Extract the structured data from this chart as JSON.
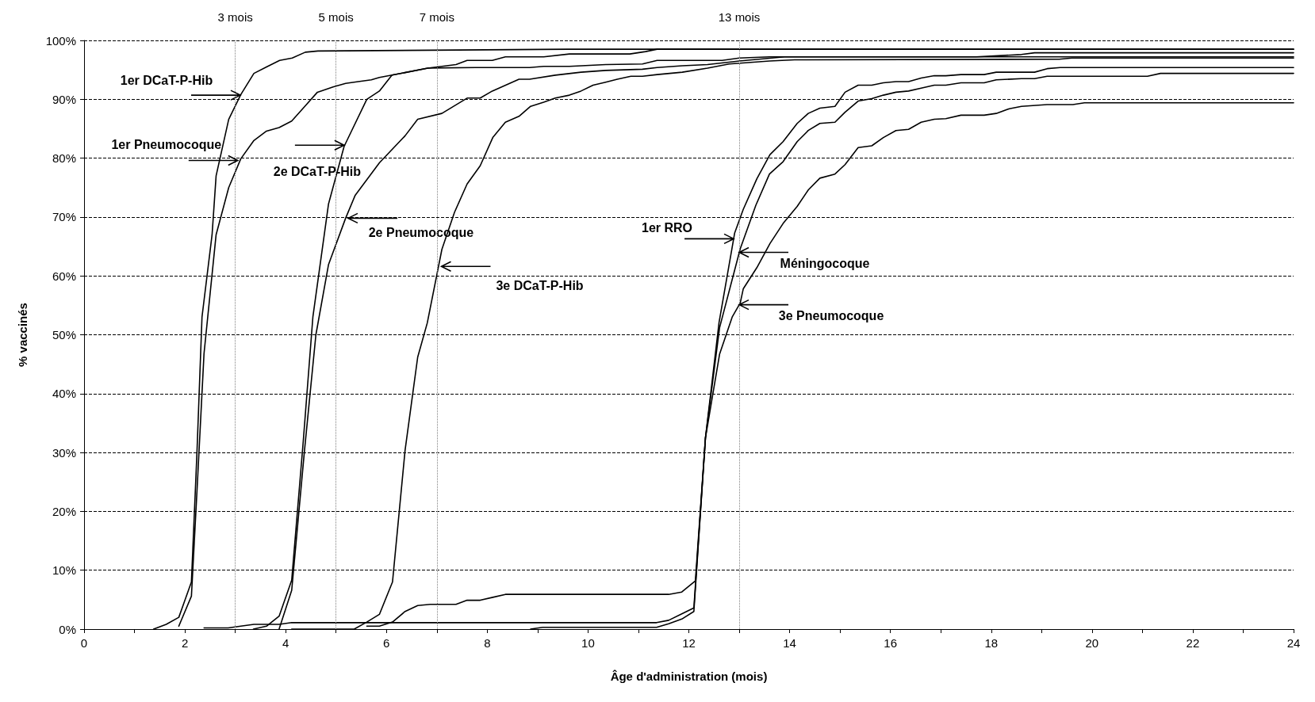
{
  "chart_data": {
    "type": "line",
    "xlabel": "Âge d'administration (mois)",
    "ylabel": "% vaccinés",
    "xlim": [
      0,
      24
    ],
    "ylim": [
      0,
      100
    ],
    "xticks": [
      0,
      {
        "value": 1,
        "label": null
      },
      2,
      {
        "value": 3,
        "label": null
      },
      4,
      {
        "value": 5,
        "label": null
      },
      6,
      {
        "value": 7,
        "label": null
      },
      8,
      {
        "value": 9,
        "label": null
      },
      10,
      {
        "value": 11,
        "label": null
      },
      12,
      {
        "value": 13,
        "label": null
      },
      14,
      {
        "value": 15,
        "label": null
      },
      16,
      {
        "value": 17,
        "label": null
      },
      18,
      {
        "value": 19,
        "label": null
      },
      20,
      {
        "value": 21,
        "label": null
      },
      22,
      {
        "value": 23,
        "label": null
      },
      24
    ],
    "yticks": [
      {
        "value": 0,
        "label": "0%"
      },
      {
        "value": 10,
        "label": "10%"
      },
      {
        "value": 20,
        "label": "20%"
      },
      {
        "value": 30,
        "label": "30%"
      },
      {
        "value": 40,
        "label": "40%"
      },
      {
        "value": 50,
        "label": "50%"
      },
      {
        "value": 60,
        "label": "60%"
      },
      {
        "value": 70,
        "label": "70%"
      },
      {
        "value": 80,
        "label": "80%"
      },
      {
        "value": 90,
        "label": "90%"
      },
      {
        "value": 100,
        "label": "100%"
      }
    ],
    "grid": "y",
    "marker": "none",
    "line_style": "solid",
    "series": [
      {
        "color": "#000000",
        "x": [
          1.38,
          1.63,
          1.88,
          2.13,
          2.24,
          2.34,
          2.54,
          2.62,
          2.87,
          3.11,
          3.37,
          3.62,
          3.88,
          4.13,
          4.39,
          4.64,
          9.6,
          24
        ],
        "values": [
          0,
          0.8,
          2,
          8,
          30,
          53,
          67,
          77,
          86.6,
          90.8,
          94.4,
          95.5,
          96.6,
          97,
          98,
          98.2,
          98.5,
          98.5
        ]
      },
      {
        "color": "#000000",
        "x": [
          1.88,
          2.13,
          2.25,
          2.38,
          2.62,
          2.87,
          3.11,
          3.37,
          3.62,
          3.87,
          4.12,
          4.38,
          4.63,
          4.94,
          5.19,
          5.44,
          5.7,
          5.86,
          6.11,
          6.82,
          7.77,
          8.84,
          9.12,
          9.63,
          10.35,
          11.08,
          11.37,
          12.66,
          13.0,
          13.6,
          17.7,
          18.6,
          18.86,
          24
        ],
        "values": [
          0.5,
          5.6,
          25,
          46.8,
          67,
          75,
          79.9,
          83,
          84.6,
          85.2,
          86.3,
          88.8,
          91.2,
          92.1,
          92.7,
          93,
          93.3,
          93.7,
          94.1,
          95.3,
          95.4,
          95.4,
          95.6,
          95.6,
          95.9,
          96,
          96.6,
          96.6,
          97,
          97.2,
          97.2,
          97.6,
          97.9,
          97.9
        ]
      },
      {
        "color": "#000000",
        "x": [
          3.36,
          3.62,
          3.87,
          4.12,
          4.35,
          4.54,
          4.85,
          5.16,
          5.61,
          5.86,
          6.11,
          6.82,
          7.38,
          7.6,
          8.1,
          8.36,
          9.12,
          9.63,
          10.83,
          11.14,
          11.37,
          24
        ],
        "values": [
          0,
          0.5,
          2.2,
          8.3,
          32,
          53,
          72.2,
          82,
          90,
          91.4,
          94.1,
          95.3,
          95.9,
          96.6,
          96.6,
          97.2,
          97.2,
          97.7,
          97.7,
          98.1,
          98.5,
          98.5
        ]
      },
      {
        "color": "#000000",
        "x": [
          3.87,
          4.12,
          4.37,
          4.6,
          4.85,
          5.19,
          5.38,
          5.86,
          6.37,
          6.62,
          7.1,
          7.6,
          7.86,
          8.1,
          8.63,
          8.84,
          9.35,
          9.86,
          10.35,
          11.08,
          11.37,
          11.87,
          12.37,
          13.0,
          13.9,
          24
        ],
        "values": [
          0,
          6.6,
          30,
          50,
          61.9,
          69.8,
          73.7,
          79.2,
          83.8,
          86.6,
          87.6,
          90.2,
          90.2,
          91.4,
          93.4,
          93.4,
          94.1,
          94.6,
          94.9,
          95.1,
          95.4,
          95.7,
          95.9,
          96.5,
          97.2,
          97.2
        ]
      },
      {
        "color": "#000000",
        "x": [
          4.12,
          5.36,
          5.61,
          5.86,
          6.12,
          6.37,
          6.62,
          6.81,
          7.1,
          7.35,
          7.6,
          7.86,
          8.11,
          8.36,
          8.63,
          8.86,
          9.12,
          9.35,
          9.63,
          9.86,
          10.1,
          10.35,
          10.58,
          10.85,
          11.08,
          11.37,
          11.87,
          12.37,
          12.8,
          13.6,
          14.1,
          19.35,
          19.6,
          24
        ],
        "values": [
          0,
          0,
          1.2,
          2.5,
          8,
          30.4,
          46.2,
          52,
          64.5,
          70.8,
          75.6,
          78.7,
          83.5,
          86.1,
          87.1,
          88.8,
          89.5,
          90.2,
          90.7,
          91.4,
          92.4,
          92.9,
          93.4,
          93.9,
          93.9,
          94.2,
          94.6,
          95.3,
          96,
          96.5,
          96.7,
          96.8,
          97,
          97
        ]
      },
      {
        "color": "#000000",
        "x": [
          5.61,
          5.86,
          6.12,
          6.37,
          6.62,
          6.87,
          7.38,
          7.6,
          7.86,
          8.11,
          8.36,
          11.6,
          11.86,
          12.13,
          12.33,
          12.6,
          12.91,
          13.08,
          13.35,
          13.61,
          13.87,
          14.15,
          14.37,
          14.6,
          14.9,
          15.1,
          15.36,
          15.63,
          15.86,
          16.11,
          16.36,
          16.61,
          16.87,
          17.1,
          17.4,
          17.86,
          18.1,
          18.86,
          19.11,
          19.37,
          24
        ],
        "values": [
          0.5,
          0.5,
          1.2,
          3,
          4,
          4.2,
          4.2,
          4.9,
          4.9,
          5.4,
          5.9,
          5.9,
          6.3,
          8.2,
          32.5,
          52.1,
          67.3,
          71.3,
          76.5,
          80.6,
          82.8,
          85.9,
          87.6,
          88.5,
          88.8,
          91.2,
          92.4,
          92.4,
          92.8,
          93,
          93,
          93.6,
          94,
          94,
          94.2,
          94.2,
          94.6,
          94.6,
          95.2,
          95.4,
          95.4
        ]
      },
      {
        "color": "#000000",
        "x": [
          2.38,
          2.86,
          3.11,
          3.37,
          3.87,
          4.12,
          11.36,
          11.6,
          11.86,
          12.1,
          12.33,
          12.61,
          13.02,
          13.33,
          13.6,
          13.87,
          14.15,
          14.37,
          14.6,
          14.9,
          15.1,
          15.36,
          15.63,
          15.86,
          16.11,
          16.36,
          16.61,
          16.87,
          17.1,
          17.4,
          17.86,
          18.1,
          18.6,
          18.86,
          19.11,
          21.1,
          21.36,
          24
        ],
        "values": [
          0.2,
          0.2,
          0.5,
          0.8,
          0.8,
          1.1,
          1.1,
          1.5,
          2.6,
          3.6,
          32.5,
          51.2,
          64.6,
          72,
          77.3,
          79.4,
          82.8,
          84.7,
          85.9,
          86.1,
          87.8,
          89.7,
          90.1,
          90.7,
          91.2,
          91.4,
          91.9,
          92.4,
          92.4,
          92.8,
          92.8,
          93.3,
          93.5,
          93.5,
          93.9,
          93.9,
          94.4,
          94.4
        ]
      },
      {
        "color": "#000000",
        "x": [
          8.86,
          9.1,
          11.36,
          11.6,
          11.86,
          12.1,
          12.33,
          12.61,
          12.86,
          13.02,
          13.08,
          13.35,
          13.61,
          13.87,
          14.15,
          14.37,
          14.6,
          14.9,
          15.1,
          15.36,
          15.63,
          15.86,
          16.11,
          16.36,
          16.61,
          16.87,
          17.1,
          17.4,
          17.86,
          18.1,
          18.36,
          18.6,
          19.11,
          19.62,
          19.85,
          24
        ],
        "values": [
          0,
          0.3,
          0.3,
          0.9,
          1.7,
          3,
          32.5,
          46.7,
          53,
          55.4,
          57.8,
          61.4,
          65.5,
          68.9,
          71.8,
          74.6,
          76.6,
          77.3,
          78.9,
          81.8,
          82.1,
          83.5,
          84.7,
          84.9,
          86.1,
          86.6,
          86.7,
          87.3,
          87.3,
          87.6,
          88.4,
          88.8,
          89.1,
          89.1,
          89.4,
          89.4
        ]
      }
    ],
    "ref_lines": [
      {
        "axis": "x",
        "value": 3,
        "label": "3 mois",
        "color": "#808080",
        "line_style": "dotted"
      },
      {
        "axis": "x",
        "value": 5,
        "label": "5 mois",
        "color": "#808080",
        "line_style": "dotted"
      },
      {
        "axis": "x",
        "value": 7,
        "label": "7 mois",
        "color": "#808080",
        "line_style": "dotted"
      },
      {
        "axis": "x",
        "value": 13,
        "label": "13 mois",
        "color": "#808080",
        "line_style": "dotted"
      }
    ],
    "annotations": [
      {
        "text": "1er DCaT-P-Hib",
        "x": 3.1,
        "y": 90.7
      },
      {
        "text": "1er Pneumocoque",
        "x": 3.05,
        "y": 79.6
      },
      {
        "text": "2e DCaT-P-Hib",
        "x": 5.16,
        "y": 82.2
      },
      {
        "text": "2e Pneumocoque",
        "x": 5.24,
        "y": 69.8
      },
      {
        "text": "3e DCaT-P-Hib",
        "x": 7.09,
        "y": 61.6
      },
      {
        "text": "1er RRO",
        "x": 12.89,
        "y": 66.3
      },
      {
        "text": "Méningocoque",
        "x": 13.0,
        "y": 64.0
      },
      {
        "text": "3e Pneumocoque",
        "x": 13.0,
        "y": 55.1
      }
    ]
  }
}
